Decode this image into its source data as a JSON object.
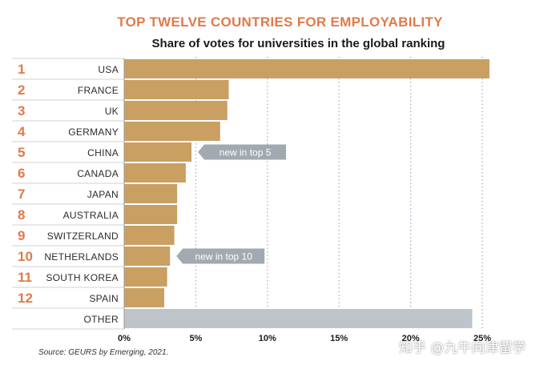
{
  "chart_data": {
    "type": "bar",
    "orientation": "horizontal",
    "title": "TOP TWELVE COUNTRIES FOR EMPLOYABILITY",
    "subtitle": "Share of votes for universities in the global ranking",
    "ranks": [
      "1",
      "2",
      "3",
      "4",
      "5",
      "6",
      "7",
      "8",
      "9",
      "10",
      "11",
      "12",
      ""
    ],
    "categories": [
      "USA",
      "FRANCE",
      "UK",
      "GERMANY",
      "CHINA",
      "CANADA",
      "JAPAN",
      "AUSTRALIA",
      "SWITZERLAND",
      "NETHERLANDS",
      "SOUTH KOREA",
      "SPAIN",
      "OTHER"
    ],
    "values": [
      25.5,
      7.3,
      7.2,
      6.7,
      4.7,
      4.3,
      3.7,
      3.7,
      3.5,
      3.2,
      3.0,
      2.8,
      24.3
    ],
    "xlim": [
      0,
      25
    ],
    "xticks": [
      "0%",
      "5%",
      "10%",
      "15%",
      "20%",
      "25%"
    ],
    "tick_values": [
      0,
      5,
      10,
      15,
      20,
      25
    ],
    "grid": "vertical dotted",
    "annotations": [
      {
        "text": "new in top 5",
        "category": "CHINA"
      },
      {
        "text": "new in top 10",
        "category": "NETHERLANDS"
      }
    ],
    "colors": {
      "bar": "#c9a062",
      "other_bar": "#bfc3ca",
      "rank": "#e07a4a",
      "callout": "#a3a9b1",
      "grid": "#a8a6c8"
    }
  },
  "source": "Source: GEURS by Emerging, 2021.",
  "watermark": "知乎 @九牛向津留学"
}
